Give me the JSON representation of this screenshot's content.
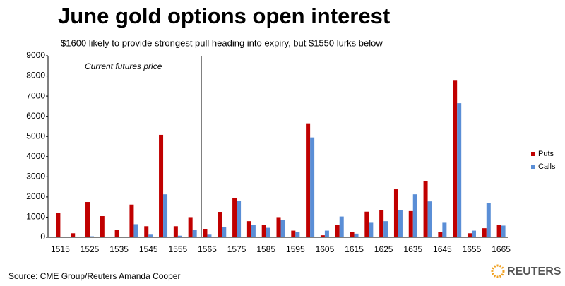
{
  "chart_data": {
    "type": "bar",
    "title": "June gold options open interest",
    "subtitle": "$1600 likely to provide strongest pull heading into expiry, but $1550 lurks below",
    "annotation": "Current futures price",
    "source": "Source: CME Group/Reuters Amanda Cooper",
    "logo": "REUTERS",
    "categories": [
      "1515",
      null,
      "1525",
      null,
      "1535",
      null,
      "1545",
      null,
      "1555",
      null,
      "1565",
      null,
      "1575",
      null,
      "1585",
      null,
      "1595",
      null,
      "1605",
      null,
      "1615",
      null,
      "1625",
      null,
      "1635",
      null,
      "1645",
      null,
      "1655",
      null,
      "1665"
    ],
    "series": [
      {
        "name": "Puts",
        "color": "#c00000",
        "values": [
          1200,
          200,
          1750,
          1050,
          380,
          1620,
          550,
          5080,
          550,
          1000,
          420,
          1260,
          1930,
          800,
          600,
          1000,
          330,
          5650,
          100,
          620,
          250,
          1270,
          1350,
          2380,
          1300,
          2780,
          270,
          7800,
          200,
          450,
          620
        ]
      },
      {
        "name": "Calls",
        "color": "#5a8ed6",
        "values": [
          0,
          0,
          50,
          0,
          30,
          650,
          130,
          2130,
          80,
          380,
          130,
          500,
          1800,
          620,
          470,
          850,
          250,
          4950,
          330,
          1030,
          180,
          720,
          800,
          1350,
          2130,
          1780,
          720,
          6650,
          330,
          1700,
          580
        ]
      }
    ],
    "ylim": [
      0,
      9000
    ],
    "yticks": [
      0,
      1000,
      2000,
      3000,
      4000,
      5000,
      6000,
      7000,
      8000,
      9000
    ],
    "grid": false,
    "legend": "right"
  }
}
